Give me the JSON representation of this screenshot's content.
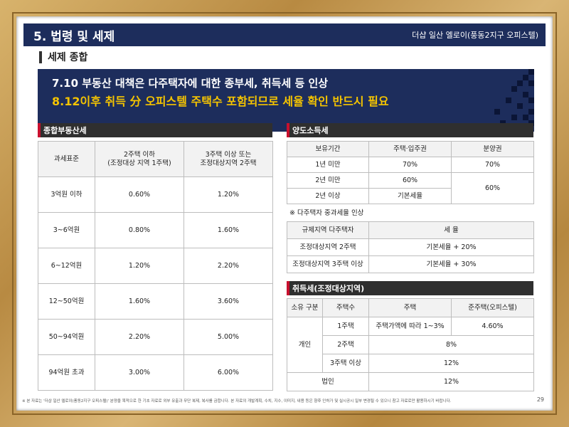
{
  "header": {
    "title": "5. 법령 및 세제",
    "project": "더샵 일산 엘로이(풍동2지구 오피스텔)"
  },
  "section_title": "세제 종합",
  "banner": {
    "line1": "7.10 부동산 대책은 다주택자에 대한 종부세, 취득세 등 인상",
    "line2": "8.12이후 취득 分 오피스텔 주택수 포함되므로 세율 확인 반드시 필요"
  },
  "comprehensive": {
    "title": "종합부동산세",
    "headers": [
      "과세표준",
      "2주택 이하\n(조정대상 지역 1주택)",
      "3주택 이상 또는\n조정대상지역 2주택"
    ],
    "rows": [
      [
        "3억원 이하",
        "0.60%",
        "1.20%"
      ],
      [
        "3~6억원",
        "0.80%",
        "1.60%"
      ],
      [
        "6~12억원",
        "1.20%",
        "2.20%"
      ],
      [
        "12~50억원",
        "1.60%",
        "3.60%"
      ],
      [
        "50~94억원",
        "2.20%",
        "5.00%"
      ],
      [
        "94억원 초과",
        "3.00%",
        "6.00%"
      ]
    ]
  },
  "transfer": {
    "title": "양도소득세",
    "headers": [
      "보유기간",
      "주택·입주권",
      "분양권"
    ],
    "rows": [
      {
        "period": "1년 미만",
        "housing": "70%",
        "presale": "70%"
      },
      {
        "period": "2년 미만",
        "housing": "60%"
      },
      {
        "period": "2년 이상",
        "housing": "기본세율"
      }
    ],
    "presale_merged": "60%",
    "note": "※ 다주택자 중과세율 인상",
    "heavy_headers": [
      "규제지역 다주택자",
      "세 율"
    ],
    "heavy_rows": [
      [
        "조정대상지역 2주택",
        "기본세율 + 20%"
      ],
      [
        "조정대상지역 3주택 이상",
        "기본세율 + 30%"
      ]
    ]
  },
  "acquisition": {
    "title": "취득세(조정대상지역)",
    "headers": [
      "소유 구분",
      "주택수",
      "주택",
      "준주택(오피스텔)"
    ],
    "individual_label": "개인",
    "rows": [
      {
        "count": "1주택",
        "housing": "주택가액에 따라 1~3%",
        "officetel": "4.60%"
      },
      {
        "count": "2주택",
        "merged": "8%"
      },
      {
        "count": "3주택 이상",
        "merged": "12%"
      }
    ],
    "corporation_label": "법인",
    "corporation_value": "12%"
  },
  "footer": {
    "disclaimer": "※ 본 자료는 '더샵 일산 엘로이(풍동2지구 오피스텔)' 분양을 목적으로 한 기초 자료로 외부 유출과 무단 복제, 복사를 금합니다. 본 자료의 개발계획, 수치, 지수, 이미지, 내용 등은 향후 인허가 및 실시공시 일부 변경될 수 있으니 참고 자료로만 활용하시기 바랍니다.",
    "page": "29"
  },
  "colors": {
    "navy": "#1d2d5c",
    "accent_yellow": "#f5c400",
    "header_dark": "#2f2f2f",
    "red_marker": "#c8102e",
    "frame_gold": "#c9a25a"
  }
}
